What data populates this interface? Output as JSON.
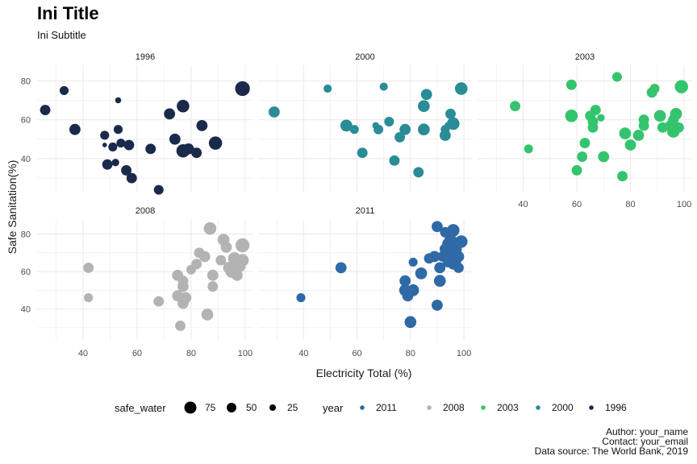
{
  "title": "Ini Title",
  "subtitle": "Ini Subtitle",
  "caption": {
    "line1": "Author: your_name",
    "line2": "Contact: your_email",
    "line3": "Data source: The World Bank, 2019"
  },
  "colors": {
    "1996": "#1b2a4a",
    "2000": "#2a8c97",
    "2003": "#34c46e",
    "2008": "#b3b3b3",
    "2011": "#2f6aa6",
    "grid": "#ebebeb"
  },
  "chart_data": {
    "type": "scatter",
    "title": "Ini Title",
    "subtitle": "Ini Subtitle",
    "xlabel": "Electricity Total (%)",
    "ylabel": "Safe Sanitation(%)",
    "xlim": [
      23,
      103
    ],
    "ylim": [
      23,
      88
    ],
    "xticks": [
      40,
      60,
      80,
      100
    ],
    "yticks": [
      40,
      60,
      80
    ],
    "grid": true,
    "legend_position": "bottom",
    "size_legend": {
      "title": "safe_water",
      "entries": [
        75,
        50,
        25
      ]
    },
    "color_legend": {
      "title": "year",
      "entries": [
        "2011",
        "2008",
        "2003",
        "2000",
        "1996"
      ]
    },
    "panels": [
      {
        "label": "1996",
        "points": [
          {
            "x": 26,
            "y": 65,
            "w": 55
          },
          {
            "x": 33,
            "y": 75,
            "w": 45
          },
          {
            "x": 37,
            "y": 55,
            "w": 60
          },
          {
            "x": 48,
            "y": 52,
            "w": 45
          },
          {
            "x": 48,
            "y": 47,
            "w": 15
          },
          {
            "x": 49,
            "y": 37,
            "w": 55
          },
          {
            "x": 51,
            "y": 46,
            "w": 45
          },
          {
            "x": 52,
            "y": 38,
            "w": 35
          },
          {
            "x": 53,
            "y": 55,
            "w": 45
          },
          {
            "x": 53,
            "y": 70,
            "w": 25
          },
          {
            "x": 54,
            "y": 48,
            "w": 45
          },
          {
            "x": 56,
            "y": 34,
            "w": 55
          },
          {
            "x": 57,
            "y": 47,
            "w": 55
          },
          {
            "x": 58,
            "y": 30,
            "w": 55
          },
          {
            "x": 65,
            "y": 45,
            "w": 55
          },
          {
            "x": 68,
            "y": 24,
            "w": 50
          },
          {
            "x": 72,
            "y": 63,
            "w": 60
          },
          {
            "x": 74,
            "y": 50,
            "w": 60
          },
          {
            "x": 77,
            "y": 67,
            "w": 70
          },
          {
            "x": 77,
            "y": 44,
            "w": 75
          },
          {
            "x": 79,
            "y": 45,
            "w": 60
          },
          {
            "x": 82,
            "y": 43,
            "w": 55
          },
          {
            "x": 84,
            "y": 57,
            "w": 60
          },
          {
            "x": 89,
            "y": 48,
            "w": 75
          },
          {
            "x": 99,
            "y": 76,
            "w": 85
          }
        ]
      },
      {
        "label": "2000",
        "points": [
          {
            "x": 29,
            "y": 64,
            "w": 60
          },
          {
            "x": 49,
            "y": 76,
            "w": 40
          },
          {
            "x": 56,
            "y": 57,
            "w": 65
          },
          {
            "x": 59,
            "y": 55,
            "w": 45
          },
          {
            "x": 62,
            "y": 43,
            "w": 55
          },
          {
            "x": 67,
            "y": 57,
            "w": 30
          },
          {
            "x": 68,
            "y": 55,
            "w": 50
          },
          {
            "x": 70,
            "y": 77,
            "w": 40
          },
          {
            "x": 72,
            "y": 59,
            "w": 50
          },
          {
            "x": 74,
            "y": 39,
            "w": 55
          },
          {
            "x": 76,
            "y": 51,
            "w": 55
          },
          {
            "x": 78,
            "y": 55,
            "w": 60
          },
          {
            "x": 83,
            "y": 33,
            "w": 55
          },
          {
            "x": 85,
            "y": 55,
            "w": 65
          },
          {
            "x": 85,
            "y": 67,
            "w": 65
          },
          {
            "x": 86,
            "y": 73,
            "w": 60
          },
          {
            "x": 93,
            "y": 52,
            "w": 60
          },
          {
            "x": 93,
            "y": 55,
            "w": 45
          },
          {
            "x": 94,
            "y": 57,
            "w": 30
          },
          {
            "x": 95,
            "y": 63,
            "w": 55
          },
          {
            "x": 96,
            "y": 58,
            "w": 70
          },
          {
            "x": 99,
            "y": 76,
            "w": 70
          }
        ]
      },
      {
        "label": "2003",
        "points": [
          {
            "x": 37,
            "y": 67,
            "w": 55
          },
          {
            "x": 42,
            "y": 45,
            "w": 45
          },
          {
            "x": 58,
            "y": 78,
            "w": 55
          },
          {
            "x": 58,
            "y": 62,
            "w": 70
          },
          {
            "x": 60,
            "y": 34,
            "w": 55
          },
          {
            "x": 62,
            "y": 41,
            "w": 55
          },
          {
            "x": 63,
            "y": 48,
            "w": 55
          },
          {
            "x": 65,
            "y": 62,
            "w": 55
          },
          {
            "x": 66,
            "y": 56,
            "w": 55
          },
          {
            "x": 66,
            "y": 59,
            "w": 55
          },
          {
            "x": 67,
            "y": 65,
            "w": 55
          },
          {
            "x": 69,
            "y": 61,
            "w": 35
          },
          {
            "x": 70,
            "y": 41,
            "w": 60
          },
          {
            "x": 75,
            "y": 82,
            "w": 50
          },
          {
            "x": 77,
            "y": 31,
            "w": 55
          },
          {
            "x": 78,
            "y": 53,
            "w": 65
          },
          {
            "x": 80,
            "y": 47,
            "w": 60
          },
          {
            "x": 83,
            "y": 52,
            "w": 60
          },
          {
            "x": 85,
            "y": 60,
            "w": 55
          },
          {
            "x": 85,
            "y": 57,
            "w": 55
          },
          {
            "x": 88,
            "y": 74,
            "w": 55
          },
          {
            "x": 89,
            "y": 76,
            "w": 50
          },
          {
            "x": 91,
            "y": 62,
            "w": 65
          },
          {
            "x": 92,
            "y": 56,
            "w": 55
          },
          {
            "x": 95,
            "y": 57,
            "w": 60
          },
          {
            "x": 96,
            "y": 54,
            "w": 70
          },
          {
            "x": 96,
            "y": 60,
            "w": 55
          },
          {
            "x": 97,
            "y": 63,
            "w": 65
          },
          {
            "x": 98,
            "y": 56,
            "w": 55
          },
          {
            "x": 99,
            "y": 77,
            "w": 75
          }
        ]
      },
      {
        "label": "2008",
        "points": [
          {
            "x": 42,
            "y": 62,
            "w": 55
          },
          {
            "x": 42,
            "y": 46,
            "w": 45
          },
          {
            "x": 68,
            "y": 44,
            "w": 55
          },
          {
            "x": 75,
            "y": 47,
            "w": 60
          },
          {
            "x": 75,
            "y": 58,
            "w": 60
          },
          {
            "x": 76,
            "y": 31,
            "w": 55
          },
          {
            "x": 77,
            "y": 43,
            "w": 60
          },
          {
            "x": 77,
            "y": 52,
            "w": 60
          },
          {
            "x": 77,
            "y": 55,
            "w": 55
          },
          {
            "x": 78,
            "y": 46,
            "w": 60
          },
          {
            "x": 80,
            "y": 61,
            "w": 50
          },
          {
            "x": 82,
            "y": 64,
            "w": 55
          },
          {
            "x": 83,
            "y": 70,
            "w": 55
          },
          {
            "x": 85,
            "y": 68,
            "w": 60
          },
          {
            "x": 86,
            "y": 37,
            "w": 65
          },
          {
            "x": 87,
            "y": 83,
            "w": 70
          },
          {
            "x": 88,
            "y": 52,
            "w": 55
          },
          {
            "x": 88,
            "y": 58,
            "w": 60
          },
          {
            "x": 91,
            "y": 66,
            "w": 55
          },
          {
            "x": 92,
            "y": 77,
            "w": 65
          },
          {
            "x": 93,
            "y": 73,
            "w": 60
          },
          {
            "x": 94,
            "y": 62,
            "w": 65
          },
          {
            "x": 95,
            "y": 60,
            "w": 70
          },
          {
            "x": 96,
            "y": 67,
            "w": 70
          },
          {
            "x": 97,
            "y": 58,
            "w": 60
          },
          {
            "x": 98,
            "y": 63,
            "w": 65
          },
          {
            "x": 99,
            "y": 66,
            "w": 70
          },
          {
            "x": 99,
            "y": 74,
            "w": 80
          }
        ]
      },
      {
        "label": "2011",
        "points": [
          {
            "x": 39,
            "y": 46,
            "w": 45
          },
          {
            "x": 54,
            "y": 62,
            "w": 60
          },
          {
            "x": 78,
            "y": 55,
            "w": 60
          },
          {
            "x": 78,
            "y": 50,
            "w": 65
          },
          {
            "x": 79,
            "y": 47,
            "w": 60
          },
          {
            "x": 80,
            "y": 33,
            "w": 65
          },
          {
            "x": 81,
            "y": 65,
            "w": 45
          },
          {
            "x": 81,
            "y": 50,
            "w": 65
          },
          {
            "x": 84,
            "y": 59,
            "w": 65
          },
          {
            "x": 87,
            "y": 67,
            "w": 55
          },
          {
            "x": 89,
            "y": 68,
            "w": 60
          },
          {
            "x": 90,
            "y": 42,
            "w": 60
          },
          {
            "x": 90,
            "y": 84,
            "w": 60
          },
          {
            "x": 91,
            "y": 55,
            "w": 65
          },
          {
            "x": 91,
            "y": 62,
            "w": 60
          },
          {
            "x": 92,
            "y": 68,
            "w": 55
          },
          {
            "x": 93,
            "y": 72,
            "w": 60
          },
          {
            "x": 93,
            "y": 81,
            "w": 55
          },
          {
            "x": 94,
            "y": 75,
            "w": 60
          },
          {
            "x": 94,
            "y": 65,
            "w": 55
          },
          {
            "x": 95,
            "y": 77,
            "w": 65
          },
          {
            "x": 95,
            "y": 70,
            "w": 60
          },
          {
            "x": 96,
            "y": 64,
            "w": 60
          },
          {
            "x": 96,
            "y": 82,
            "w": 70
          },
          {
            "x": 97,
            "y": 72,
            "w": 65
          },
          {
            "x": 97,
            "y": 66,
            "w": 60
          },
          {
            "x": 98,
            "y": 68,
            "w": 60
          },
          {
            "x": 98,
            "y": 62,
            "w": 55
          },
          {
            "x": 99,
            "y": 76,
            "w": 70
          }
        ]
      }
    ]
  }
}
